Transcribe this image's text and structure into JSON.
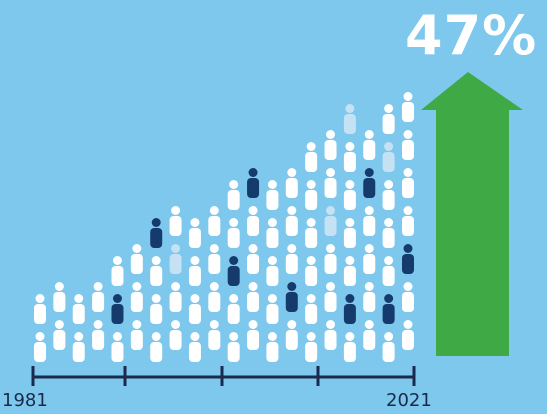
{
  "headline": {
    "percent_text": "47%"
  },
  "axis": {
    "start_year": "1981",
    "end_year": "2021"
  },
  "growth_indicator": {
    "direction": "up",
    "color": "#3faa45"
  },
  "colors": {
    "background": "#7dc8ec",
    "person_white": "#ffffff",
    "person_light": "#c5e2f5",
    "person_dark": "#153b6d",
    "axis": "#1a2a4a"
  },
  "icons": {
    "people": "person-icon",
    "arrow": "up-arrow-icon"
  }
}
